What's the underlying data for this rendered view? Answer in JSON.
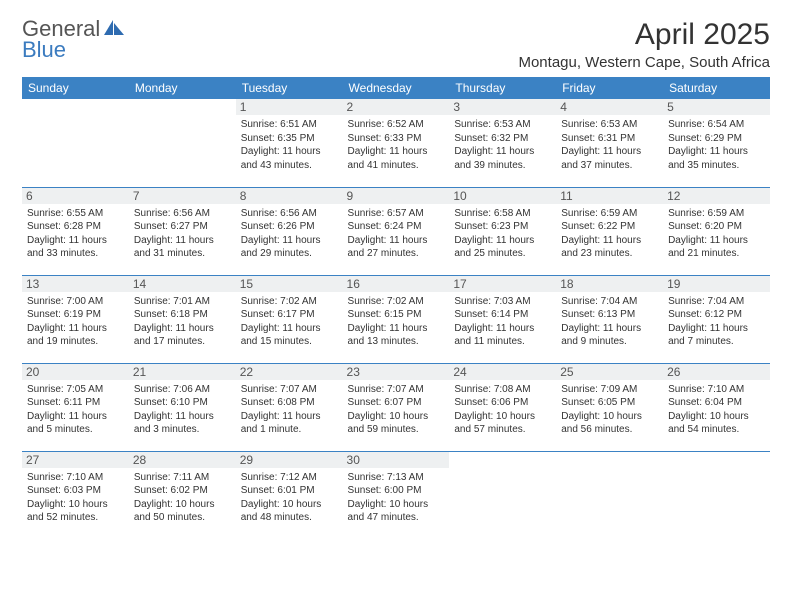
{
  "brand": {
    "name1": "General",
    "name2": "Blue"
  },
  "title": "April 2025",
  "location": "Montagu, Western Cape, South Africa",
  "header_bg": "#3b82c4",
  "header_fg": "#ffffff",
  "daybar_bg": "#eef0f1",
  "border_color": "#3b82c4",
  "text_color": "#333333",
  "info_fontsize": 10,
  "dayhead_fontsize": 12,
  "dayheads": [
    "Sunday",
    "Monday",
    "Tuesday",
    "Wednesday",
    "Thursday",
    "Friday",
    "Saturday"
  ],
  "weeks": [
    [
      {
        "n": "",
        "sr": "",
        "ss": "",
        "dl": ""
      },
      {
        "n": "",
        "sr": "",
        "ss": "",
        "dl": ""
      },
      {
        "n": "1",
        "sr": "Sunrise: 6:51 AM",
        "ss": "Sunset: 6:35 PM",
        "dl": "Daylight: 11 hours and 43 minutes."
      },
      {
        "n": "2",
        "sr": "Sunrise: 6:52 AM",
        "ss": "Sunset: 6:33 PM",
        "dl": "Daylight: 11 hours and 41 minutes."
      },
      {
        "n": "3",
        "sr": "Sunrise: 6:53 AM",
        "ss": "Sunset: 6:32 PM",
        "dl": "Daylight: 11 hours and 39 minutes."
      },
      {
        "n": "4",
        "sr": "Sunrise: 6:53 AM",
        "ss": "Sunset: 6:31 PM",
        "dl": "Daylight: 11 hours and 37 minutes."
      },
      {
        "n": "5",
        "sr": "Sunrise: 6:54 AM",
        "ss": "Sunset: 6:29 PM",
        "dl": "Daylight: 11 hours and 35 minutes."
      }
    ],
    [
      {
        "n": "6",
        "sr": "Sunrise: 6:55 AM",
        "ss": "Sunset: 6:28 PM",
        "dl": "Daylight: 11 hours and 33 minutes."
      },
      {
        "n": "7",
        "sr": "Sunrise: 6:56 AM",
        "ss": "Sunset: 6:27 PM",
        "dl": "Daylight: 11 hours and 31 minutes."
      },
      {
        "n": "8",
        "sr": "Sunrise: 6:56 AM",
        "ss": "Sunset: 6:26 PM",
        "dl": "Daylight: 11 hours and 29 minutes."
      },
      {
        "n": "9",
        "sr": "Sunrise: 6:57 AM",
        "ss": "Sunset: 6:24 PM",
        "dl": "Daylight: 11 hours and 27 minutes."
      },
      {
        "n": "10",
        "sr": "Sunrise: 6:58 AM",
        "ss": "Sunset: 6:23 PM",
        "dl": "Daylight: 11 hours and 25 minutes."
      },
      {
        "n": "11",
        "sr": "Sunrise: 6:59 AM",
        "ss": "Sunset: 6:22 PM",
        "dl": "Daylight: 11 hours and 23 minutes."
      },
      {
        "n": "12",
        "sr": "Sunrise: 6:59 AM",
        "ss": "Sunset: 6:20 PM",
        "dl": "Daylight: 11 hours and 21 minutes."
      }
    ],
    [
      {
        "n": "13",
        "sr": "Sunrise: 7:00 AM",
        "ss": "Sunset: 6:19 PM",
        "dl": "Daylight: 11 hours and 19 minutes."
      },
      {
        "n": "14",
        "sr": "Sunrise: 7:01 AM",
        "ss": "Sunset: 6:18 PM",
        "dl": "Daylight: 11 hours and 17 minutes."
      },
      {
        "n": "15",
        "sr": "Sunrise: 7:02 AM",
        "ss": "Sunset: 6:17 PM",
        "dl": "Daylight: 11 hours and 15 minutes."
      },
      {
        "n": "16",
        "sr": "Sunrise: 7:02 AM",
        "ss": "Sunset: 6:15 PM",
        "dl": "Daylight: 11 hours and 13 minutes."
      },
      {
        "n": "17",
        "sr": "Sunrise: 7:03 AM",
        "ss": "Sunset: 6:14 PM",
        "dl": "Daylight: 11 hours and 11 minutes."
      },
      {
        "n": "18",
        "sr": "Sunrise: 7:04 AM",
        "ss": "Sunset: 6:13 PM",
        "dl": "Daylight: 11 hours and 9 minutes."
      },
      {
        "n": "19",
        "sr": "Sunrise: 7:04 AM",
        "ss": "Sunset: 6:12 PM",
        "dl": "Daylight: 11 hours and 7 minutes."
      }
    ],
    [
      {
        "n": "20",
        "sr": "Sunrise: 7:05 AM",
        "ss": "Sunset: 6:11 PM",
        "dl": "Daylight: 11 hours and 5 minutes."
      },
      {
        "n": "21",
        "sr": "Sunrise: 7:06 AM",
        "ss": "Sunset: 6:10 PM",
        "dl": "Daylight: 11 hours and 3 minutes."
      },
      {
        "n": "22",
        "sr": "Sunrise: 7:07 AM",
        "ss": "Sunset: 6:08 PM",
        "dl": "Daylight: 11 hours and 1 minute."
      },
      {
        "n": "23",
        "sr": "Sunrise: 7:07 AM",
        "ss": "Sunset: 6:07 PM",
        "dl": "Daylight: 10 hours and 59 minutes."
      },
      {
        "n": "24",
        "sr": "Sunrise: 7:08 AM",
        "ss": "Sunset: 6:06 PM",
        "dl": "Daylight: 10 hours and 57 minutes."
      },
      {
        "n": "25",
        "sr": "Sunrise: 7:09 AM",
        "ss": "Sunset: 6:05 PM",
        "dl": "Daylight: 10 hours and 56 minutes."
      },
      {
        "n": "26",
        "sr": "Sunrise: 7:10 AM",
        "ss": "Sunset: 6:04 PM",
        "dl": "Daylight: 10 hours and 54 minutes."
      }
    ],
    [
      {
        "n": "27",
        "sr": "Sunrise: 7:10 AM",
        "ss": "Sunset: 6:03 PM",
        "dl": "Daylight: 10 hours and 52 minutes."
      },
      {
        "n": "28",
        "sr": "Sunrise: 7:11 AM",
        "ss": "Sunset: 6:02 PM",
        "dl": "Daylight: 10 hours and 50 minutes."
      },
      {
        "n": "29",
        "sr": "Sunrise: 7:12 AM",
        "ss": "Sunset: 6:01 PM",
        "dl": "Daylight: 10 hours and 48 minutes."
      },
      {
        "n": "30",
        "sr": "Sunrise: 7:13 AM",
        "ss": "Sunset: 6:00 PM",
        "dl": "Daylight: 10 hours and 47 minutes."
      },
      {
        "n": "",
        "sr": "",
        "ss": "",
        "dl": ""
      },
      {
        "n": "",
        "sr": "",
        "ss": "",
        "dl": ""
      },
      {
        "n": "",
        "sr": "",
        "ss": "",
        "dl": ""
      }
    ]
  ]
}
